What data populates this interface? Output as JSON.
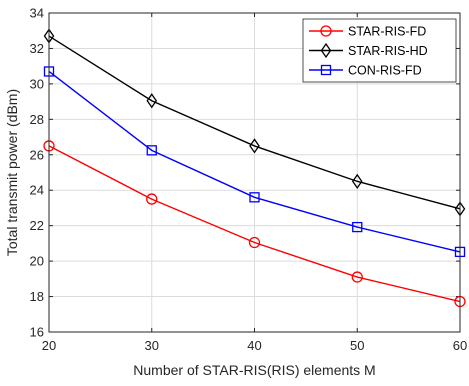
{
  "chart_data": {
    "type": "line",
    "xlabel": "Number of STAR-RIS(RIS) elements M",
    "ylabel": "Total transmit power (dBm)",
    "x": [
      20,
      30,
      40,
      50,
      60
    ],
    "xlim": [
      20,
      60
    ],
    "ylim": [
      16,
      34
    ],
    "xticks": [
      "20",
      "30",
      "40",
      "50",
      "60"
    ],
    "yticks": [
      "16",
      "18",
      "20",
      "22",
      "24",
      "26",
      "28",
      "30",
      "32",
      "34"
    ],
    "grid": true,
    "legend_position": "top-right",
    "series": [
      {
        "name": "STAR-RIS-FD",
        "color": "#ff0000",
        "marker": "circle",
        "values": [
          26.5,
          23.5,
          21.05,
          19.1,
          17.72
        ]
      },
      {
        "name": "STAR-RIS-HD",
        "color": "#000000",
        "marker": "diamond",
        "values": [
          32.7,
          29.05,
          26.5,
          24.5,
          22.95
        ]
      },
      {
        "name": "CON-RIS-FD",
        "color": "#0000ff",
        "marker": "square",
        "values": [
          30.7,
          26.25,
          23.6,
          21.92,
          20.52
        ]
      }
    ]
  }
}
